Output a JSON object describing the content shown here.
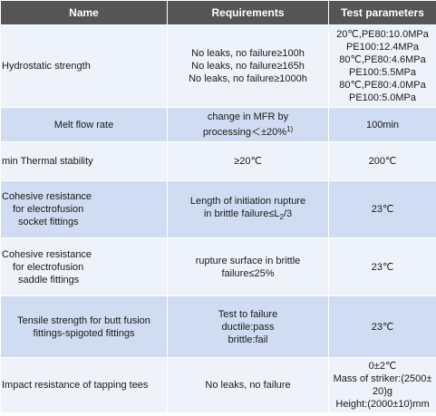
{
  "header": {
    "name": "Name",
    "requirements": "Requirements",
    "test_parameters": "Test parameters"
  },
  "rows": [
    {
      "name": "Hydrostatic strength",
      "requirements": [
        "No leaks, no failure≥100h",
        "No leaks, no failure≥165h",
        "No leaks, no failure≥1000h"
      ],
      "test_parameters": [
        "20℃,PE80:10.0MPa",
        "PE100:12.4MPa",
        "80℃,PE80:4.6MPa",
        "PE100:5.5MPa",
        "80℃,PE80:4.0MPa",
        "PE100:5.0MPa"
      ]
    },
    {
      "name": "Melt flow rate",
      "requirements": [
        "change in MFR by",
        "processing＜±20%",
        "1)"
      ],
      "test_parameters": [
        "100min"
      ]
    },
    {
      "name": "min Thermal stability",
      "requirements": [
        "≥20℃"
      ],
      "test_parameters": [
        "200℃"
      ]
    },
    {
      "name": [
        "Cohesive resistance",
        "for electrofusion",
        "socket fittings"
      ],
      "requirements": [
        "Length of initiation rupture",
        "in brittle failure≤L",
        "2",
        "/3"
      ],
      "test_parameters": [
        "23℃"
      ]
    },
    {
      "name": [
        "Cohesive resistance",
        "for electrofusion",
        "saddle fittings"
      ],
      "requirements": [
        "rupture surface in brittle",
        "failure≤25%"
      ],
      "test_parameters": [
        "23℃"
      ]
    },
    {
      "name": [
        "Tensile strength for butt fusion",
        "fittings-spigoted fittings"
      ],
      "requirements": [
        "Test to failure",
        "ductile:pass",
        "brittle:fail"
      ],
      "test_parameters": [
        "23℃"
      ]
    },
    {
      "name": "Impact resistance of tapping tees",
      "requirements": [
        "No leaks, no failure"
      ],
      "test_parameters": [
        "0±2℃",
        "Mass of striker:(2500±",
        "20)g",
        "Height:(2000±10)mm"
      ]
    }
  ]
}
